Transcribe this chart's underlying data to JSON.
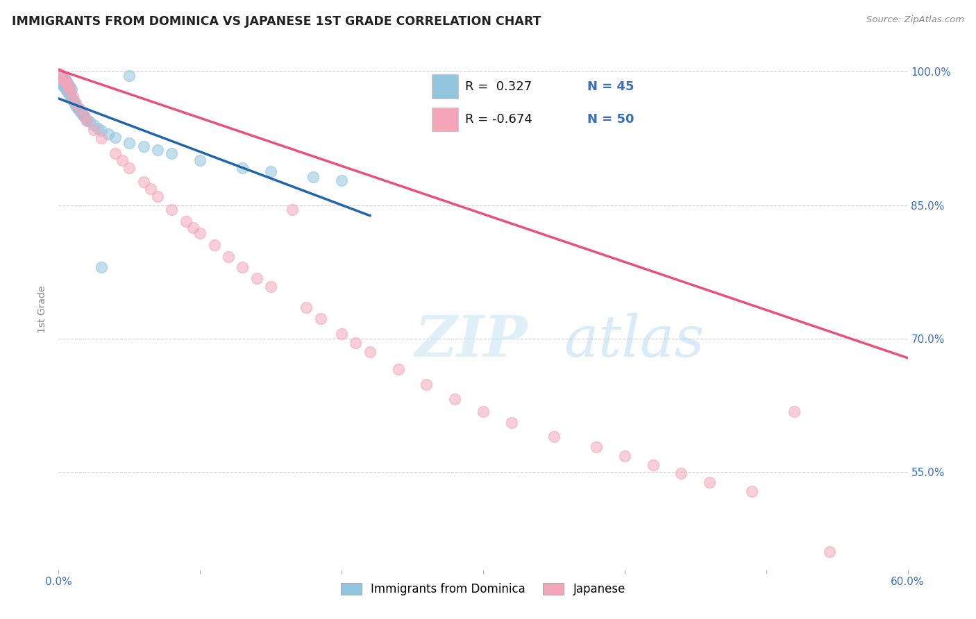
{
  "title": "IMMIGRANTS FROM DOMINICA VS JAPANESE 1ST GRADE CORRELATION CHART",
  "source_text": "Source: ZipAtlas.com",
  "ylabel": "1st Grade",
  "xlim": [
    0.0,
    0.6
  ],
  "ylim": [
    0.44,
    1.025
  ],
  "x_ticks": [
    0.0,
    0.1,
    0.2,
    0.3,
    0.4,
    0.5,
    0.6
  ],
  "x_tick_labels": [
    "0.0%",
    "",
    "",
    "",
    "",
    "",
    "60.0%"
  ],
  "y_ticks": [
    0.55,
    0.7,
    0.85,
    1.0
  ],
  "y_tick_labels": [
    "55.0%",
    "70.0%",
    "85.0%",
    "100.0%"
  ],
  "color_blue": "#92c5de",
  "color_pink": "#f4a6b8",
  "trendline_blue": "#2166ac",
  "trendline_pink": "#e8527a",
  "blue_scatter_x": [
    0.001,
    0.002,
    0.002,
    0.003,
    0.003,
    0.004,
    0.004,
    0.005,
    0.005,
    0.006,
    0.006,
    0.007,
    0.007,
    0.008,
    0.008,
    0.009,
    0.009,
    0.01,
    0.011,
    0.012,
    0.013,
    0.014,
    0.015,
    0.016,
    0.017,
    0.018,
    0.019,
    0.02,
    0.022,
    0.025,
    0.028,
    0.03,
    0.035,
    0.04,
    0.05,
    0.06,
    0.07,
    0.08,
    0.1,
    0.13,
    0.15,
    0.18,
    0.2,
    0.03,
    0.05
  ],
  "blue_scatter_y": [
    0.99,
    0.988,
    0.992,
    0.985,
    0.995,
    0.982,
    0.993,
    0.98,
    0.99,
    0.978,
    0.988,
    0.975,
    0.985,
    0.972,
    0.982,
    0.97,
    0.98,
    0.968,
    0.965,
    0.962,
    0.96,
    0.958,
    0.956,
    0.954,
    0.952,
    0.95,
    0.948,
    0.946,
    0.944,
    0.94,
    0.936,
    0.934,
    0.93,
    0.926,
    0.92,
    0.916,
    0.912,
    0.908,
    0.9,
    0.892,
    0.888,
    0.882,
    0.878,
    0.78,
    0.996
  ],
  "pink_scatter_x": [
    0.001,
    0.002,
    0.003,
    0.004,
    0.005,
    0.006,
    0.007,
    0.008,
    0.01,
    0.012,
    0.015,
    0.018,
    0.02,
    0.025,
    0.03,
    0.04,
    0.045,
    0.05,
    0.06,
    0.065,
    0.07,
    0.08,
    0.09,
    0.095,
    0.1,
    0.11,
    0.12,
    0.13,
    0.14,
    0.15,
    0.165,
    0.175,
    0.185,
    0.2,
    0.21,
    0.22,
    0.24,
    0.26,
    0.28,
    0.3,
    0.32,
    0.35,
    0.38,
    0.4,
    0.42,
    0.44,
    0.46,
    0.49,
    0.52,
    0.545
  ],
  "pink_scatter_y": [
    0.998,
    0.995,
    0.992,
    0.99,
    0.988,
    0.985,
    0.982,
    0.978,
    0.972,
    0.965,
    0.958,
    0.95,
    0.945,
    0.935,
    0.925,
    0.908,
    0.9,
    0.892,
    0.876,
    0.868,
    0.86,
    0.845,
    0.832,
    0.825,
    0.818,
    0.805,
    0.792,
    0.78,
    0.768,
    0.758,
    0.845,
    0.735,
    0.722,
    0.705,
    0.695,
    0.685,
    0.665,
    0.648,
    0.632,
    0.618,
    0.605,
    0.59,
    0.578,
    0.568,
    0.558,
    0.548,
    0.538,
    0.528,
    0.618,
    0.46
  ],
  "blue_trend_x0": 0.0,
  "blue_trend_x1": 0.22,
  "pink_trend_x0": 0.0,
  "pink_trend_x1": 0.6,
  "pink_trend_y0": 1.002,
  "pink_trend_y1": 0.678,
  "legend_label1": "Immigrants from Dominica",
  "legend_label2": "Japanese"
}
